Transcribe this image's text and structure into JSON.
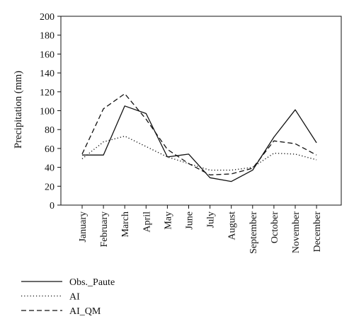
{
  "chart_data": {
    "type": "line",
    "categories": [
      "January",
      "February",
      "March",
      "April",
      "May",
      "June",
      "July",
      "August",
      "September",
      "October",
      "November",
      "December"
    ],
    "ylabel": "Precipitation (mm)",
    "xlabel": "",
    "ylim": [
      0,
      200
    ],
    "yticks": [
      0,
      20,
      40,
      60,
      80,
      100,
      120,
      140,
      160,
      180,
      200
    ],
    "grid": false,
    "legend_position": "bottom-left",
    "series": [
      {
        "name": "Obs._Paute",
        "style": "solid",
        "color": "#111111",
        "values": [
          53,
          53,
          105,
          97,
          51,
          54,
          29,
          25,
          37,
          72,
          101,
          66
        ]
      },
      {
        "name": "AI",
        "style": "dotted",
        "color": "#111111",
        "values": [
          49,
          67,
          73,
          62,
          51,
          44,
          37,
          37,
          40,
          55,
          54,
          48
        ]
      },
      {
        "name": "AI_QM",
        "style": "dashed",
        "color": "#111111",
        "values": [
          54,
          102,
          118,
          91,
          59,
          44,
          32,
          33,
          39,
          68,
          65,
          53
        ]
      }
    ]
  }
}
